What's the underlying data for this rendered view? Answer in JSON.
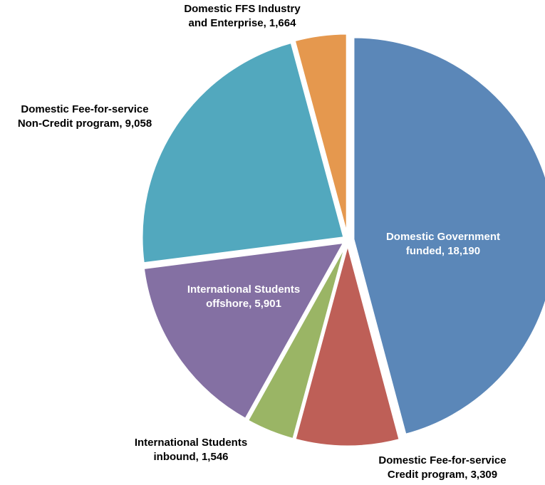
{
  "chart_data": {
    "type": "pie",
    "title": "",
    "slices": [
      {
        "label_line1": "Domestic Government",
        "label_line2": "funded,  18,190",
        "name": "Domestic Government funded",
        "value": 18190,
        "color": "#5b87b8"
      },
      {
        "label_line1": "Domestic Fee-for-service",
        "label_line2": "Credit program,  3,309",
        "name": "Domestic Fee-for-service Credit program",
        "value": 3309,
        "color": "#be5f57"
      },
      {
        "label_line1": "International Students",
        "label_line2": "inbound,  1,546",
        "name": "International Students inbound",
        "value": 1546,
        "color": "#9ab565"
      },
      {
        "label_line1": "International Students",
        "label_line2": "offshore,  5,901",
        "name": "International Students offshore",
        "value": 5901,
        "color": "#8470a3"
      },
      {
        "label_line1": "Domestic Fee-for-service",
        "label_line2": "Non-Credit program,  9,058",
        "name": "Domestic Fee-for-service Non-Credit program",
        "value": 9058,
        "color": "#52a8be"
      },
      {
        "label_line1": "Domestic FFS Industry",
        "label_line2": "and Enterprise,  1,664",
        "name": "Domestic FFS Industry and Enterprise",
        "value": 1664,
        "color": "#e5984e"
      }
    ],
    "start_angle_deg": 0,
    "direction": "clockwise",
    "label_colors": [
      "#ffffff",
      "#000000",
      "#000000",
      "#ffffff",
      "#000000",
      "#000000"
    ]
  }
}
